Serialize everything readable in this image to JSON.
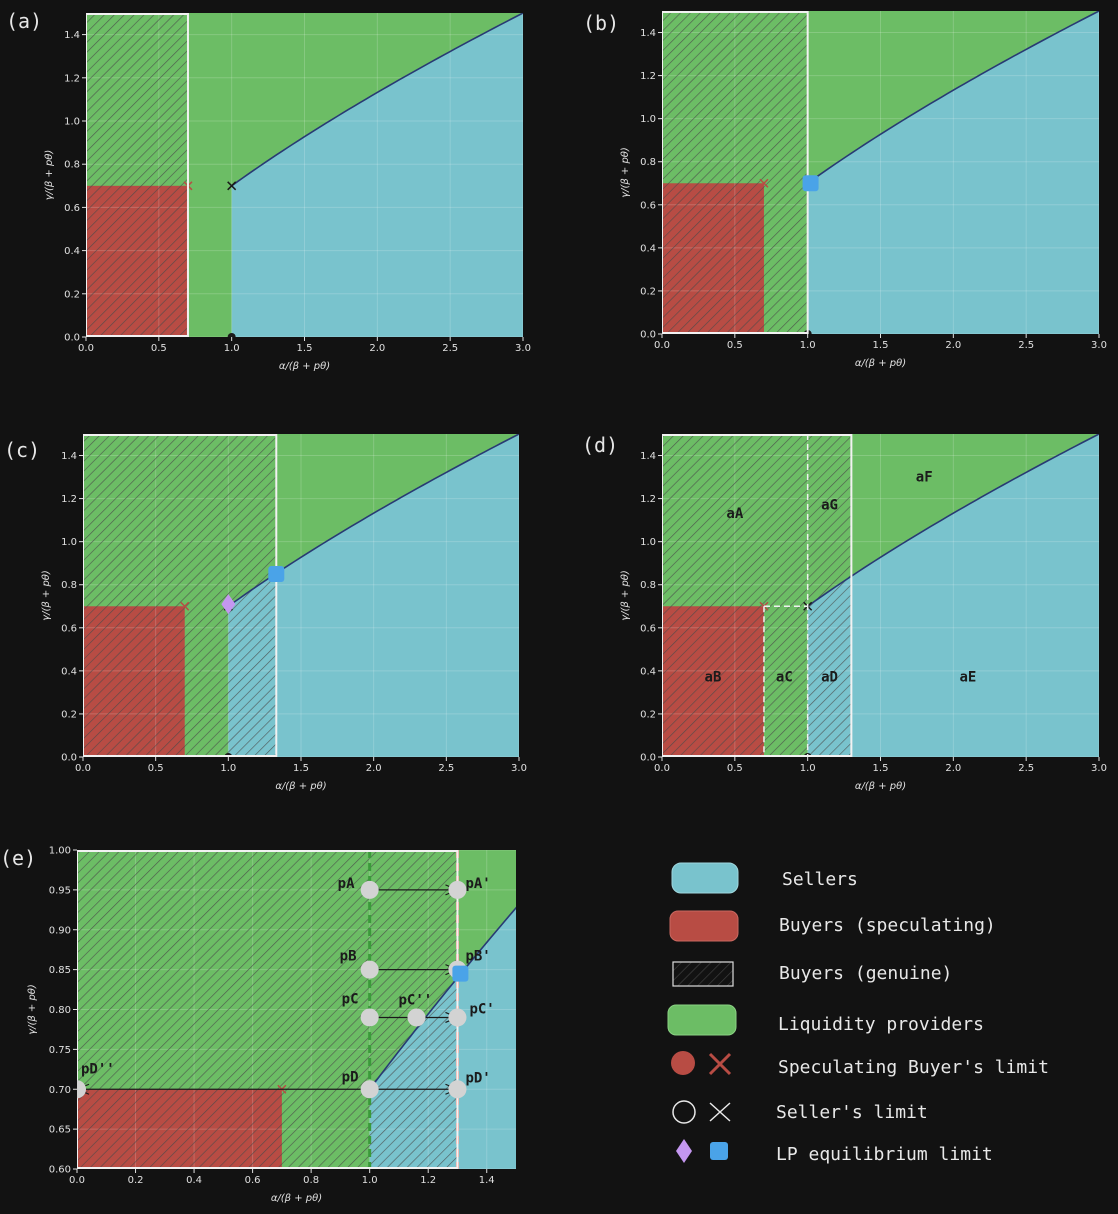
{
  "colors": {
    "background": "#121212",
    "sellers": "#79c3cd",
    "buyers_speculating": "#b84c44",
    "liquidity": "#6cbd65",
    "boundary": "#283a73",
    "frame": "#f2f2f2",
    "hatch": "#4a4a4a",
    "lp_diamond": "#c497f0",
    "lp_square": "#4aa3e8",
    "marker_dark": "#1a1a1a",
    "point_fill": "#d3d3d3",
    "green_dash": "#3a9a3a",
    "red_dash": "#ef8f86"
  },
  "chart_data": [
    {
      "panel": "(a)",
      "type": "area",
      "xlabel": "α/(β + pθ)",
      "ylabel": "γ/(β + pθ)",
      "xlim": [
        0,
        3
      ],
      "ylim": [
        0,
        1.5
      ],
      "xticks": [
        "0.0",
        "0.5",
        "1.0",
        "1.5",
        "2.0",
        "2.5",
        "3.0"
      ],
      "yticks": [
        "0.0",
        "0.2",
        "0.4",
        "0.6",
        "0.8",
        "1.0",
        "1.2",
        "1.4"
      ],
      "buyer_limit": {
        "x": 0.7,
        "y": 0.7
      },
      "seller_limit": {
        "x": 1.0,
        "y": 0.7
      },
      "genuine_buyer_box": [
        0,
        0.7
      ],
      "lp_equilibrium": null,
      "boundary": {
        "type": "power",
        "x0": 1.0,
        "y0": 0.7,
        "x1": 3.0,
        "y1": 1.5
      },
      "grid": true
    },
    {
      "panel": "(b)",
      "type": "area",
      "xlabel": "α/(β + pθ)",
      "ylabel": "γ/(β + pθ)",
      "xlim": [
        0,
        3
      ],
      "ylim": [
        0,
        1.5
      ],
      "xticks": [
        "0.0",
        "0.5",
        "1.0",
        "1.5",
        "2.0",
        "2.5",
        "3.0"
      ],
      "yticks": [
        "0.0",
        "0.2",
        "0.4",
        "0.6",
        "0.8",
        "1.0",
        "1.2",
        "1.4"
      ],
      "buyer_limit": {
        "x": 0.7,
        "y": 0.7
      },
      "seller_limit": {
        "x": 1.0,
        "y": 0.7
      },
      "genuine_buyer_box": [
        0,
        1.0
      ],
      "lp_equilibrium": {
        "shape": "square",
        "x": 1.02,
        "y": 0.7
      },
      "boundary": {
        "type": "power",
        "x0": 1.0,
        "y0": 0.7,
        "x1": 3.0,
        "y1": 1.5
      },
      "grid": true
    },
    {
      "panel": "(c)",
      "type": "area",
      "xlabel": "α/(β + pθ)",
      "ylabel": "γ/(β + pθ)",
      "xlim": [
        0,
        3
      ],
      "ylim": [
        0,
        1.5
      ],
      "xticks": [
        "0.0",
        "0.5",
        "1.0",
        "1.5",
        "2.0",
        "2.5",
        "3.0"
      ],
      "yticks": [
        "0.0",
        "0.2",
        "0.4",
        "0.6",
        "0.8",
        "1.0",
        "1.2",
        "1.4"
      ],
      "buyer_limit": {
        "x": 0.7,
        "y": 0.7
      },
      "seller_limit": {
        "x": 1.0,
        "y": 0.7
      },
      "genuine_buyer_box": [
        0,
        1.33
      ],
      "lp_equilibrium": {
        "shape": "square",
        "x": 1.33,
        "y": 0.85
      },
      "lp_diamond": {
        "x": 1.0,
        "y": 0.71
      },
      "boundary": {
        "type": "power",
        "x0": 1.0,
        "y0": 0.7,
        "x1": 3.0,
        "y1": 1.5
      },
      "grid": true
    },
    {
      "panel": "(d)",
      "type": "area",
      "xlabel": "α/(β + pθ)",
      "ylabel": "γ/(β + pθ)",
      "xlim": [
        0,
        3
      ],
      "ylim": [
        0,
        1.5
      ],
      "xticks": [
        "0.0",
        "0.5",
        "1.0",
        "1.5",
        "2.0",
        "2.5",
        "3.0"
      ],
      "yticks": [
        "0.0",
        "0.2",
        "0.4",
        "0.6",
        "0.8",
        "1.0",
        "1.2",
        "1.4"
      ],
      "buyer_limit": {
        "x": 0.7,
        "y": 0.7
      },
      "seller_limit": {
        "x": 1.0,
        "y": 0.7
      },
      "genuine_buyer_box": [
        0,
        1.3
      ],
      "lp_equilibrium": null,
      "boundary": {
        "type": "power",
        "x0": 1.0,
        "y0": 0.7,
        "x1": 3.0,
        "y1": 1.5
      },
      "region_labels": [
        {
          "text": "aA",
          "x": 0.5,
          "y": 1.11
        },
        {
          "text": "aG",
          "x": 1.15,
          "y": 1.15
        },
        {
          "text": "aF",
          "x": 1.8,
          "y": 1.28
        },
        {
          "text": "aB",
          "x": 0.35,
          "y": 0.35
        },
        {
          "text": "aC",
          "x": 0.84,
          "y": 0.35
        },
        {
          "text": "aD",
          "x": 1.15,
          "y": 0.35
        },
        {
          "text": "aE",
          "x": 2.1,
          "y": 0.35
        }
      ],
      "grid": true
    },
    {
      "panel": "(e)",
      "type": "area",
      "xlabel": "α/(β + pθ)",
      "ylabel": "γ/(β + pθ)",
      "xlim": [
        0,
        1.5
      ],
      "ylim": [
        0.6,
        1.0
      ],
      "xticks": [
        "0.0",
        "0.2",
        "0.4",
        "0.6",
        "0.8",
        "1.0",
        "1.2",
        "1.4"
      ],
      "yticks": [
        "0.60",
        "0.65",
        "0.70",
        "0.75",
        "0.80",
        "0.85",
        "0.90",
        "0.95",
        "1.00"
      ],
      "buyer_limit": {
        "x": 0.7,
        "y": 0.7
      },
      "genuine_buyer_box": [
        0,
        1.3
      ],
      "lp_equilibrium": {
        "shape": "square",
        "x": 1.31,
        "y": 0.845
      },
      "boundary": {
        "type": "power",
        "x0": 1.0,
        "y0": 0.7,
        "x1": 3.0,
        "y1": 1.5
      },
      "vlines": [
        {
          "x": 1.0,
          "color": "green"
        },
        {
          "x": 1.3,
          "color": "red"
        }
      ],
      "points": [
        {
          "label": "pA",
          "x": 1.0,
          "y": 0.95
        },
        {
          "label": "pA'",
          "x": 1.3,
          "y": 0.95
        },
        {
          "label": "pB",
          "x": 1.0,
          "y": 0.85
        },
        {
          "label": "pB'",
          "x": 1.3,
          "y": 0.85
        },
        {
          "label": "pC",
          "x": 1.0,
          "y": 0.79
        },
        {
          "label": "pC''",
          "x": 1.16,
          "y": 0.79
        },
        {
          "label": "pC'",
          "x": 1.3,
          "y": 0.79
        },
        {
          "label": "pD",
          "x": 1.0,
          "y": 0.7
        },
        {
          "label": "pD'",
          "x": 1.3,
          "y": 0.7
        },
        {
          "label": "pD''",
          "x": 0.0,
          "y": 0.7
        }
      ],
      "arrows": [
        {
          "from": [
            1.0,
            0.95
          ],
          "to": [
            1.3,
            0.95
          ]
        },
        {
          "from": [
            1.0,
            0.85
          ],
          "to": [
            1.3,
            0.85
          ]
        },
        {
          "from": [
            1.0,
            0.79
          ],
          "to": [
            1.3,
            0.79
          ]
        },
        {
          "from": [
            1.0,
            0.7
          ],
          "to": [
            1.3,
            0.7
          ]
        },
        {
          "from": [
            1.0,
            0.7
          ],
          "to": [
            0.0,
            0.7
          ]
        }
      ],
      "grid": true
    }
  ],
  "legend": [
    {
      "text": "Sellers",
      "swatch": "sellers"
    },
    {
      "text": "Buyers (speculating)",
      "swatch": "buyers"
    },
    {
      "text": "Buyers (genuine)",
      "swatch": "hatch"
    },
    {
      "text": "Liquidity providers",
      "swatch": "liquidity"
    },
    {
      "text": "Speculating Buyer's limit",
      "swatch": "buyer-markers"
    },
    {
      "text": "Seller's limit",
      "swatch": "seller-markers"
    },
    {
      "text": "LP equilibrium limit",
      "swatch": "lp-markers"
    }
  ]
}
